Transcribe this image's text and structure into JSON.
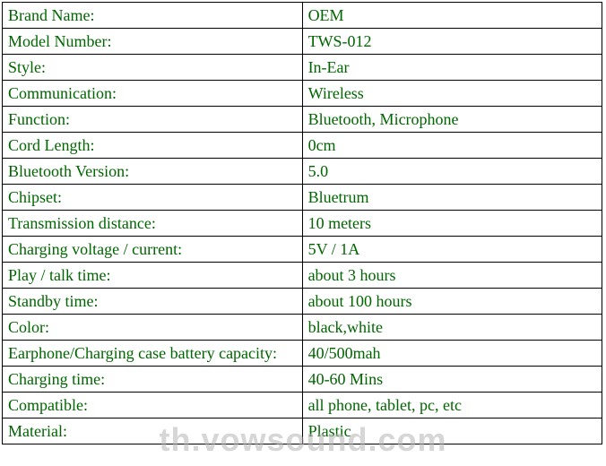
{
  "table": {
    "border_color": "#000000",
    "text_color": "#006600",
    "background_color": "#ffffff",
    "font_family": "Times New Roman",
    "font_size": 18,
    "rows": [
      {
        "label": "Brand Name:",
        "value": "OEM"
      },
      {
        "label": "Model Number:",
        "value": "TWS-012"
      },
      {
        "label": "Style:",
        "value": "In-Ear"
      },
      {
        "label": "Communication:",
        "value": "Wireless"
      },
      {
        "label": "Function:",
        "value": "Bluetooth, Microphone"
      },
      {
        "label": "Cord Length:",
        "value": "0cm"
      },
      {
        "label": "Bluetooth Version:",
        "value": "5.0"
      },
      {
        "label": "Chipset:",
        "value": "Bluetrum"
      },
      {
        "label": "Transmission distance:",
        "value": "10 meters"
      },
      {
        "label": "Charging voltage / current:",
        "value": "5V / 1A"
      },
      {
        "label": "Play / talk time:",
        "value": "about 3 hours"
      },
      {
        "label": "Standby time:",
        "value": "about 100 hours"
      },
      {
        "label": "Color:",
        "value": "black,white"
      },
      {
        "label": "Earphone/Charging case battery capacity:",
        "value": "40/500mah"
      },
      {
        "label": "Charging time:",
        "value": "40-60 Mins"
      },
      {
        "label": "Compatible:",
        "value": "all phone, tablet, pc, etc"
      },
      {
        "label": "Material:",
        "value": "Plastic"
      }
    ]
  },
  "watermark": {
    "text": "th.vowsound.com",
    "color": "rgba(180,180,180,0.55)",
    "font_size": 36
  }
}
